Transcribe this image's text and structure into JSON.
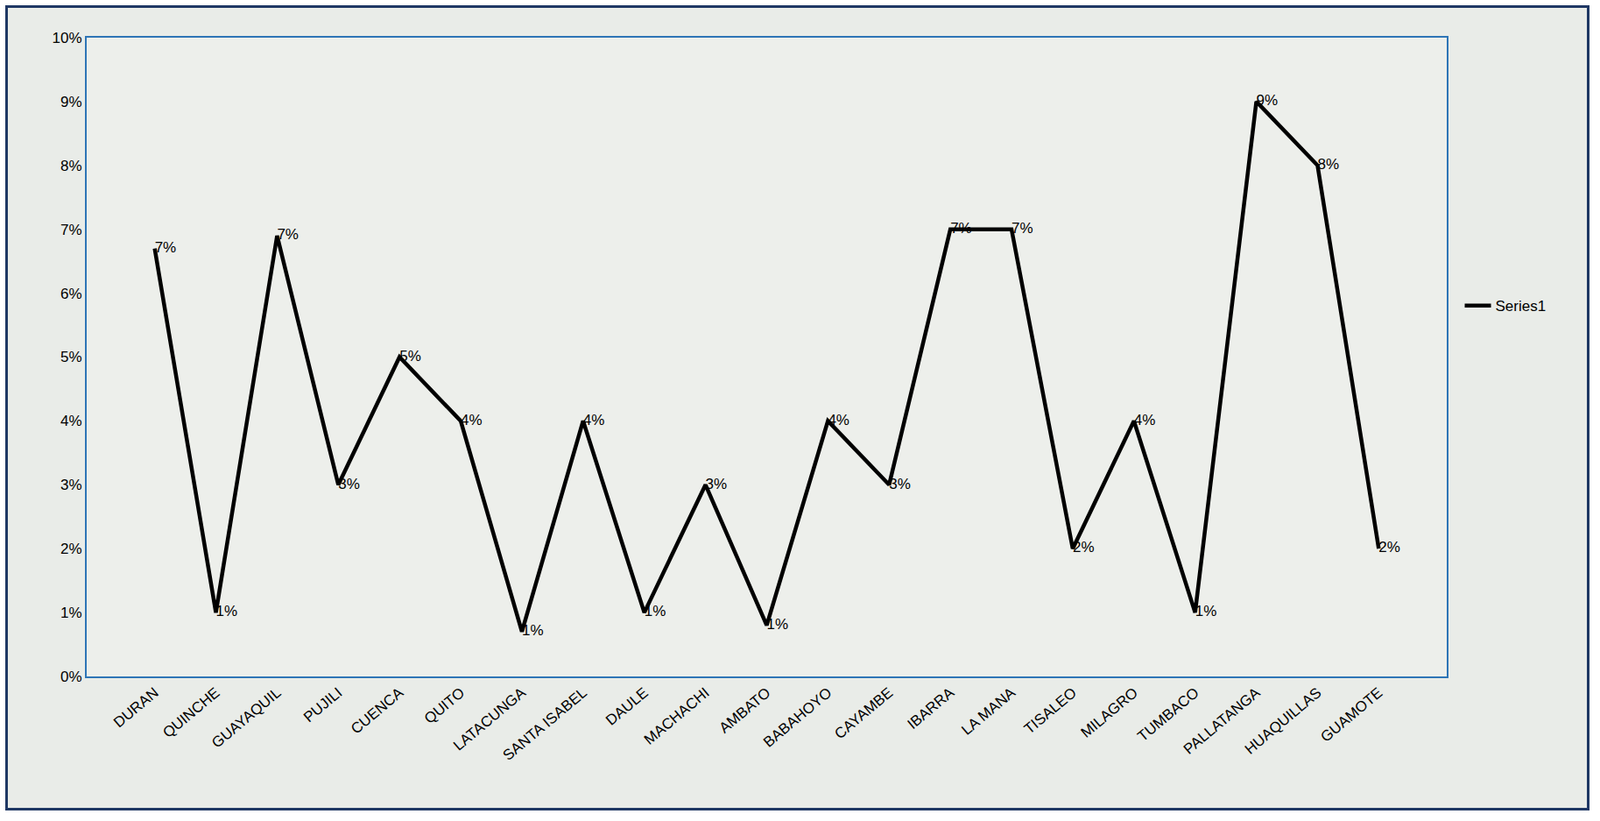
{
  "chart_data": {
    "type": "line",
    "categories": [
      "DURAN",
      "QUINCHE",
      "GUAYAQUIL",
      "PUJILI",
      "CUENCA",
      "QUITO",
      "LATACUNGA",
      "SANTA ISABEL",
      "DAULE",
      "MACHACHI",
      "AMBATO",
      "BABAHOYO",
      "CAYAMBE",
      "IBARRA",
      "LA MANA",
      "TISALEO",
      "MILAGRO",
      "TUMBACO",
      "PALLATANGA",
      "HUAQUILLAS",
      "GUAMOTE"
    ],
    "series": [
      {
        "name": "Series1",
        "color": "#000000",
        "values": [
          6.7,
          1,
          6.9,
          3,
          5,
          4,
          0.7,
          4,
          1,
          3,
          0.8,
          4,
          3,
          7,
          7,
          2,
          4,
          1,
          9,
          8,
          2
        ],
        "value_labels": [
          "7%",
          "1%",
          "7%",
          "3%",
          "5%",
          "4%",
          "1%",
          "4%",
          "1%",
          "3%",
          "1%",
          "4%",
          "3%",
          "7%",
          "7%",
          "2%",
          "4%",
          "1%",
          "9%",
          "8%",
          "2%"
        ]
      }
    ],
    "ylim": [
      0,
      10
    ],
    "yticks": [
      {
        "value": 0,
        "label": "0%"
      },
      {
        "value": 1,
        "label": "1%"
      },
      {
        "value": 2,
        "label": "2%"
      },
      {
        "value": 3,
        "label": "3%"
      },
      {
        "value": 4,
        "label": "4%"
      },
      {
        "value": 5,
        "label": "5%"
      },
      {
        "value": 6,
        "label": "6%"
      },
      {
        "value": 7,
        "label": "7%"
      },
      {
        "value": 8,
        "label": "8%"
      },
      {
        "value": 9,
        "label": "9%"
      },
      {
        "value": 10,
        "label": "10%"
      }
    ],
    "grid": false,
    "legend": "right",
    "data_labels": true
  }
}
